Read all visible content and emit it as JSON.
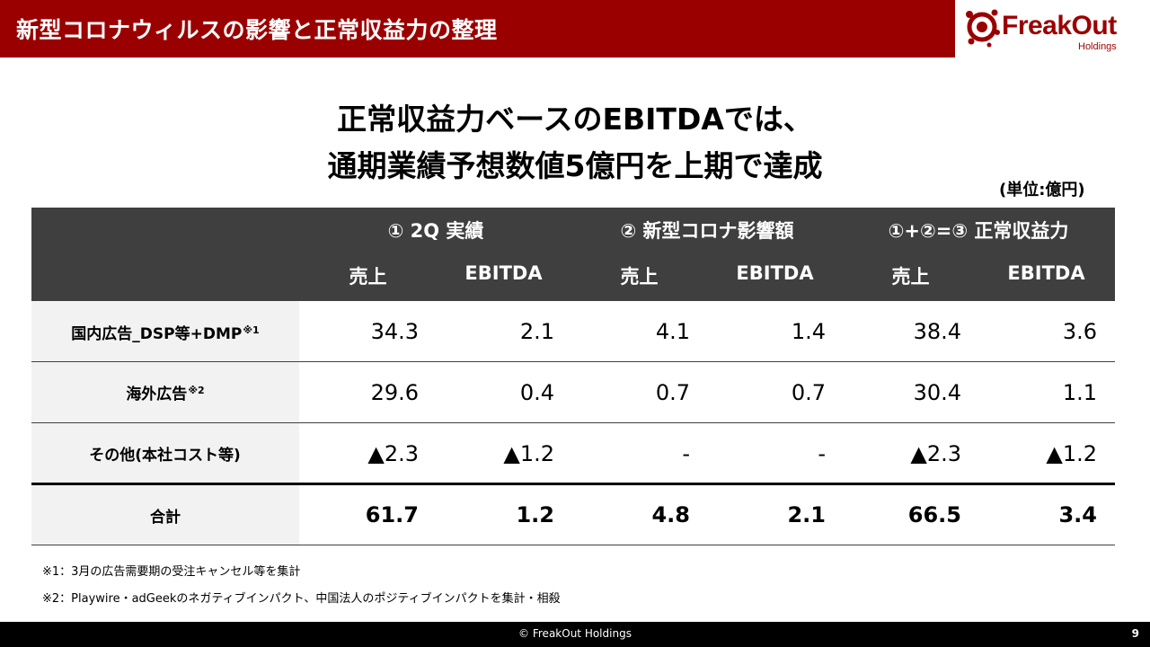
{
  "header": {
    "title": "新型コロナウィルスの影響と正常収益力の整理",
    "brand": "FreakOut",
    "brand_sub": "Holdings",
    "color": "#9b0000"
  },
  "headline": {
    "line1": "正常収益力ベースのEBITDAでは、",
    "line2": "通期業績予想数値5億円を上期で達成"
  },
  "unit": "(単位:億円)",
  "table": {
    "groups": [
      "① 2Q 実績",
      "② 新型コロナ影響額",
      "①+②=③ 正常収益力"
    ],
    "subheaders": [
      "売上",
      "EBITDA",
      "売上",
      "EBITDA",
      "売上",
      "EBITDA"
    ],
    "rows": [
      {
        "label": "国内広告_DSP等+DMP",
        "note": "※1",
        "values": [
          "34.3",
          "2.1",
          "4.1",
          "1.4",
          "38.4",
          "3.6"
        ]
      },
      {
        "label": "海外広告",
        "note": "※2",
        "values": [
          "29.6",
          "0.4",
          "0.7",
          "0.7",
          "30.4",
          "1.1"
        ]
      },
      {
        "label": "その他(本社コスト等)",
        "note": "",
        "values": [
          "▲2.3",
          "▲1.2",
          "-",
          "-",
          "▲2.3",
          "▲1.2"
        ]
      }
    ],
    "total": {
      "label": "合計",
      "values": [
        "61.7",
        "1.2",
        "4.8",
        "2.1",
        "66.5",
        "3.4"
      ]
    }
  },
  "notes": [
    "※1：3月の広告需要期の受注キャンセル等を集計",
    "※2：Playwire・adGeekのネガティブインパクト、中国法人のポジティブインパクトを集計・相殺"
  ],
  "footer": {
    "copyright": "© FreakOut Holdings",
    "page": "9"
  }
}
